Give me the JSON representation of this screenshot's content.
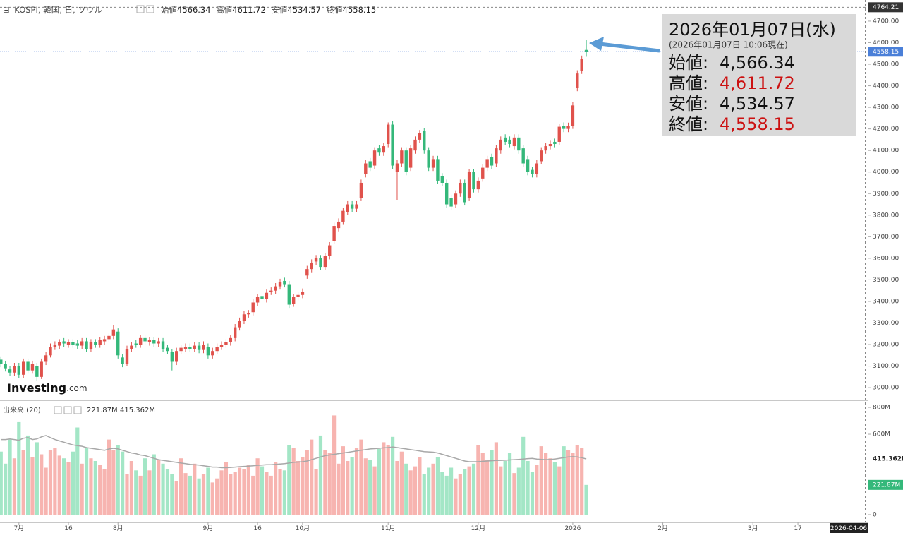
{
  "chart_data": [
    {
      "type": "candlestick",
      "title": "KOSPI, 韓国, 日, ソウル",
      "ohlc_labels": [
        "始値",
        "高値",
        "安値",
        "終値"
      ],
      "open": [
        3130,
        3110,
        3085,
        3070,
        3100,
        3060,
        3120,
        3080,
        3100,
        3050,
        3120,
        3150,
        3190,
        3195,
        3215,
        3200,
        3210,
        3205,
        3195,
        3215,
        3180,
        3210,
        3200,
        3215,
        3225,
        3240,
        3260,
        3140,
        3110,
        3180,
        3205,
        3200,
        3230,
        3210,
        3220,
        3205,
        3215,
        3185,
        3165,
        3120,
        3170,
        3180,
        3190,
        3180,
        3195,
        3175,
        3190,
        3150,
        3170,
        3190,
        3200,
        3210,
        3230,
        3280,
        3310,
        3340,
        3350,
        3395,
        3425,
        3410,
        3445,
        3450,
        3470,
        3495,
        3480,
        3390,
        3420,
        3430,
        3520,
        3550,
        3585,
        3600,
        3560,
        3610,
        3680,
        3740,
        3770,
        3815,
        3850,
        3830,
        3880,
        3990,
        4050,
        4030,
        4110,
        4090,
        4130,
        4220,
        4000,
        4040,
        4100,
        4020,
        4100,
        4150,
        4190,
        4100,
        4020,
        4060,
        3980,
        3950,
        3880,
        3850,
        3900,
        3950,
        3880,
        4000,
        3920,
        3970,
        4020,
        4070,
        4040,
        4100,
        4160,
        4150,
        4120,
        4160,
        4110,
        4060,
        4010,
        3990,
        4050,
        4100,
        4120,
        4140,
        4140,
        4215,
        4200,
        4215,
        4390,
        4470,
        4566.34
      ],
      "high": [
        3145,
        3125,
        3100,
        3115,
        3115,
        3135,
        3135,
        3125,
        3115,
        3135,
        3165,
        3205,
        3215,
        3225,
        3230,
        3225,
        3225,
        3220,
        3230,
        3230,
        3225,
        3225,
        3235,
        3240,
        3255,
        3290,
        3275,
        3155,
        3195,
        3210,
        3220,
        3245,
        3245,
        3235,
        3235,
        3230,
        3230,
        3200,
        3180,
        3185,
        3200,
        3205,
        3205,
        3210,
        3210,
        3215,
        3205,
        3185,
        3205,
        3215,
        3225,
        3245,
        3295,
        3325,
        3355,
        3360,
        3410,
        3435,
        3440,
        3455,
        3465,
        3485,
        3505,
        3510,
        3495,
        3435,
        3445,
        3460,
        3565,
        3595,
        3615,
        3615,
        3625,
        3675,
        3765,
        3785,
        3835,
        3865,
        3865,
        3865,
        3965,
        4055,
        4065,
        4115,
        4125,
        4135,
        4230,
        4235,
        4055,
        4115,
        4115,
        4125,
        4165,
        4195,
        4205,
        4115,
        4075,
        4075,
        3995,
        3965,
        3895,
        3915,
        3965,
        3965,
        4015,
        4015,
        3975,
        4035,
        4075,
        4085,
        4125,
        4165,
        4175,
        4165,
        4175,
        4175,
        4125,
        4075,
        4025,
        4055,
        4115,
        4135,
        4145,
        4155,
        4225,
        4230,
        4229,
        4324,
        4472,
        4540,
        4611.72
      ],
      "low": [
        3095,
        3075,
        3055,
        3055,
        3045,
        3045,
        3065,
        3065,
        3030,
        3040,
        3105,
        3140,
        3175,
        3180,
        3190,
        3185,
        3185,
        3180,
        3180,
        3165,
        3165,
        3185,
        3185,
        3200,
        3210,
        3225,
        3135,
        3095,
        3100,
        3165,
        3185,
        3185,
        3200,
        3195,
        3190,
        3190,
        3165,
        3155,
        3080,
        3105,
        3155,
        3165,
        3165,
        3165,
        3160,
        3160,
        3135,
        3135,
        3155,
        3175,
        3185,
        3195,
        3215,
        3265,
        3295,
        3325,
        3335,
        3380,
        3395,
        3395,
        3430,
        3435,
        3455,
        3465,
        3370,
        3375,
        3405,
        3415,
        3505,
        3535,
        3570,
        3545,
        3545,
        3595,
        3665,
        3725,
        3755,
        3800,
        3815,
        3815,
        3865,
        3975,
        4005,
        4015,
        4075,
        4075,
        4115,
        4015,
        3870,
        4025,
        3985,
        4005,
        4085,
        4135,
        4085,
        4005,
        4005,
        3945,
        3935,
        3835,
        3825,
        3835,
        3885,
        3845,
        3865,
        3905,
        3905,
        3955,
        4005,
        4015,
        4025,
        4085,
        4125,
        4115,
        4105,
        4085,
        4025,
        3985,
        3975,
        3975,
        4035,
        4085,
        4105,
        4115,
        4125,
        4185,
        4185,
        4200,
        4375,
        4455,
        4534.57
      ],
      "close": [
        3110,
        3090,
        3070,
        3100,
        3060,
        3120,
        3080,
        3110,
        3050,
        3120,
        3150,
        3190,
        3200,
        3210,
        3205,
        3210,
        3200,
        3195,
        3215,
        3180,
        3210,
        3200,
        3220,
        3225,
        3240,
        3270,
        3150,
        3110,
        3180,
        3195,
        3200,
        3230,
        3215,
        3220,
        3205,
        3215,
        3180,
        3170,
        3120,
        3170,
        3185,
        3190,
        3180,
        3195,
        3175,
        3200,
        3150,
        3170,
        3190,
        3200,
        3210,
        3230,
        3280,
        3310,
        3340,
        3345,
        3395,
        3420,
        3410,
        3440,
        3450,
        3470,
        3490,
        3480,
        3385,
        3420,
        3430,
        3445,
        3550,
        3580,
        3600,
        3560,
        3610,
        3660,
        3750,
        3770,
        3820,
        3850,
        3830,
        3850,
        3950,
        4040,
        4020,
        4100,
        4090,
        4120,
        4220,
        4030,
        4040,
        4100,
        4000,
        4110,
        4150,
        4180,
        4100,
        4020,
        4060,
        3960,
        3950,
        3850,
        3840,
        3900,
        3950,
        3860,
        4000,
        3920,
        3960,
        4020,
        4060,
        4030,
        4110,
        4150,
        4140,
        4130,
        4160,
        4100,
        4040,
        4000,
        3990,
        4040,
        4100,
        4120,
        4130,
        4130,
        4210,
        4200,
        4214,
        4309,
        4457,
        4525,
        4558.15
      ],
      "up_color": "#e0524c",
      "down_color": "#34b87a",
      "last_price_color": "#4a7fd8",
      "xlim": [
        -0.2,
        192.5
      ],
      "xticks": [
        {
          "value": 4,
          "label": "7月"
        },
        {
          "value": 15,
          "label": "16"
        },
        {
          "value": 26,
          "label": "8月"
        },
        {
          "value": 46,
          "label": "9月"
        },
        {
          "value": 57,
          "label": "16"
        },
        {
          "value": 67,
          "label": "10月"
        },
        {
          "value": 86,
          "label": "11月"
        },
        {
          "value": 106,
          "label": "12月"
        },
        {
          "value": 127,
          "label": "2026"
        },
        {
          "value": 147,
          "label": "2月"
        },
        {
          "value": 167,
          "label": "3月"
        },
        {
          "value": 177,
          "label": "17"
        }
      ],
      "ylim": [
        2948,
        4798
      ],
      "yticks": [
        {
          "value": 3000,
          "label": "3000.00"
        },
        {
          "value": 3100,
          "label": "3100.00"
        },
        {
          "value": 3200,
          "label": "3200.00"
        },
        {
          "value": 3300,
          "label": "3300.00"
        },
        {
          "value": 3400,
          "label": "3400.00"
        },
        {
          "value": 3500,
          "label": "3500.00"
        },
        {
          "value": 3600,
          "label": "3600.00"
        },
        {
          "value": 3700,
          "label": "3700.00"
        },
        {
          "value": 3800,
          "label": "3800.00"
        },
        {
          "value": 3900,
          "label": "3900.00"
        },
        {
          "value": 4000,
          "label": "4000.00"
        },
        {
          "value": 4100,
          "label": "4100.00"
        },
        {
          "value": 4200,
          "label": "4200.00"
        },
        {
          "value": 4300,
          "label": "4300.00"
        },
        {
          "value": 4400,
          "label": "4400.00"
        },
        {
          "value": 4500,
          "label": "4500.00"
        },
        {
          "value": 4600,
          "label": "4600.00"
        },
        {
          "value": 4700,
          "label": "4700.00"
        }
      ],
      "crosshair": {
        "value": 4764.21,
        "date": "2026-04-06"
      },
      "tooltip": {
        "title": "2026年01月07日(水)",
        "subtitle": "(2026年01月07日 10:06現在)",
        "row_labels": [
          "始値:",
          "高値:",
          "安値:",
          "終値:"
        ],
        "value_labels": [
          "4,566.34",
          "4,611.72",
          "4,534.57",
          "4,558.15"
        ],
        "value_colors": [
          "#111111",
          "#cc1111",
          "#111111",
          "#cc1111"
        ]
      },
      "watermark": [
        "Investing",
        ".com"
      ]
    },
    {
      "type": "bar",
      "title": "出来高 (20)",
      "values": [
        470,
        380,
        560,
        420,
        690,
        480,
        590,
        430,
        540,
        450,
        350,
        480,
        500,
        440,
        420,
        390,
        470,
        650,
        380,
        500,
        420,
        400,
        370,
        340,
        560,
        480,
        520,
        470,
        300,
        400,
        330,
        290,
        420,
        330,
        450,
        410,
        380,
        340,
        300,
        250,
        420,
        310,
        290,
        380,
        270,
        300,
        350,
        240,
        270,
        330,
        390,
        300,
        320,
        350,
        340,
        370,
        290,
        420,
        360,
        320,
        290,
        390,
        340,
        330,
        520,
        500,
        400,
        430,
        480,
        560,
        340,
        590,
        480,
        460,
        740,
        380,
        510,
        400,
        430,
        500,
        560,
        420,
        410,
        360,
        490,
        540,
        520,
        580,
        400,
        470,
        380,
        330,
        360,
        430,
        300,
        350,
        380,
        430,
        320,
        290,
        350,
        270,
        300,
        340,
        360,
        380,
        520,
        460,
        410,
        480,
        540,
        360,
        400,
        460,
        310,
        350,
        580,
        400,
        320,
        370,
        510,
        460,
        420,
        390,
        360,
        510,
        480,
        460,
        520,
        500,
        221.87
      ],
      "up_color": "#f7b4b0",
      "down_color": "#a3e6c6",
      "ma": {
        "color": "#a8a8a8",
        "values": [
          560,
          560,
          565,
          560,
          555,
          570,
          575,
          560,
          565,
          580,
          590,
          575,
          560,
          550,
          540,
          530,
          520,
          515,
          510,
          500,
          495,
          490,
          485,
          480,
          490,
          495,
          490,
          480,
          470,
          460,
          455,
          445,
          440,
          430,
          420,
          410,
          405,
          400,
          395,
          390,
          385,
          380,
          375,
          372,
          370,
          365,
          360,
          355,
          355,
          350,
          350,
          352,
          355,
          358,
          360,
          362,
          365,
          368,
          370,
          372,
          372,
          375,
          378,
          380,
          385,
          390,
          392,
          395,
          400,
          410,
          420,
          430,
          440,
          445,
          450,
          455,
          460,
          465,
          470,
          475,
          480,
          485,
          490,
          492,
          495,
          498,
          500,
          505,
          500,
          495,
          490,
          485,
          480,
          475,
          470,
          468,
          466,
          460,
          450,
          440,
          430,
          420,
          410,
          400,
          395,
          395,
          395,
          398,
          400,
          402,
          404,
          405,
          406,
          408,
          410,
          412,
          414,
          418,
          420,
          415,
          412,
          410,
          412,
          415,
          420,
          425,
          430,
          432,
          430,
          425,
          415.362
        ]
      },
      "ylim": [
        -58,
        837
      ],
      "yticks": [
        0,
        {
          "value": 600,
          "label": "600M"
        },
        {
          "value": 800,
          "label": "800M"
        }
      ],
      "last_labels": [
        {
          "value": 415.362,
          "label": "415.362M",
          "color": "#222222"
        },
        {
          "value": 221.87,
          "label": "221.87M",
          "color": "#34b87a"
        }
      ]
    }
  ]
}
